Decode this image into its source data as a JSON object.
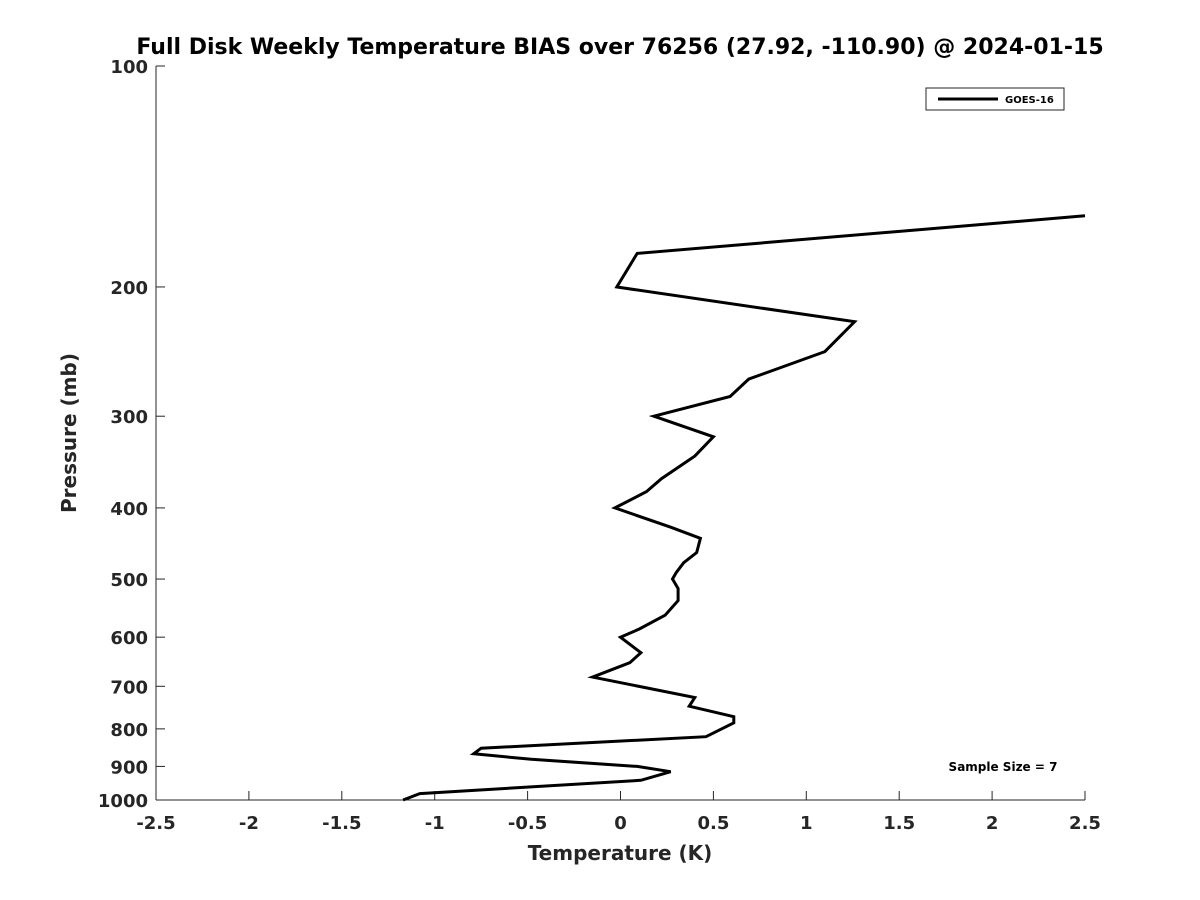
{
  "chart_data": {
    "type": "line",
    "title": "Full Disk Weekly Temperature BIAS over 76256 (27.92, -110.90) @ 2024-01-15",
    "xlabel": "Temperature (K)",
    "ylabel": "Pressure (mb)",
    "xlim": [
      -2.5,
      2.5
    ],
    "ylim": [
      1000,
      100
    ],
    "y_scale": "log",
    "x_ticks": [
      -2.5,
      -2,
      -1.5,
      -1,
      -0.5,
      0,
      0.5,
      1,
      1.5,
      2,
      2.5
    ],
    "x_tick_labels": [
      "-2.5",
      "-2",
      "-1.5",
      "-1",
      "-0.5",
      "0",
      "0.5",
      "1",
      "1.5",
      "2",
      "2.5"
    ],
    "y_ticks": [
      100,
      200,
      300,
      400,
      500,
      600,
      700,
      800,
      900,
      1000
    ],
    "y_tick_labels": [
      "100",
      "200",
      "300",
      "400",
      "500",
      "600",
      "700",
      "800",
      "900",
      "1000"
    ],
    "grid": false,
    "legend": {
      "placement": "top-right",
      "entries": [
        "GOES-16"
      ]
    },
    "annotation": "Sample Size = 7",
    "line_color": "#000000",
    "series": [
      {
        "name": "GOES-16",
        "points": [
          {
            "t": 2.5,
            "p": 160
          },
          {
            "t": 0.09,
            "p": 180
          },
          {
            "t": -0.02,
            "p": 200
          },
          {
            "t": 1.26,
            "p": 223
          },
          {
            "t": 1.1,
            "p": 245
          },
          {
            "t": 0.69,
            "p": 267
          },
          {
            "t": 0.59,
            "p": 282
          },
          {
            "t": 0.18,
            "p": 300
          },
          {
            "t": 0.5,
            "p": 320
          },
          {
            "t": 0.4,
            "p": 340
          },
          {
            "t": 0.22,
            "p": 365
          },
          {
            "t": 0.14,
            "p": 380
          },
          {
            "t": -0.03,
            "p": 400
          },
          {
            "t": 0.27,
            "p": 425
          },
          {
            "t": 0.43,
            "p": 440
          },
          {
            "t": 0.41,
            "p": 460
          },
          {
            "t": 0.34,
            "p": 475
          },
          {
            "t": 0.3,
            "p": 490
          },
          {
            "t": 0.28,
            "p": 500
          },
          {
            "t": 0.31,
            "p": 515
          },
          {
            "t": 0.31,
            "p": 535
          },
          {
            "t": 0.24,
            "p": 560
          },
          {
            "t": 0.1,
            "p": 585
          },
          {
            "t": 0.0,
            "p": 600
          },
          {
            "t": 0.11,
            "p": 630
          },
          {
            "t": 0.05,
            "p": 650
          },
          {
            "t": -0.15,
            "p": 680
          },
          {
            "t": 0.4,
            "p": 725
          },
          {
            "t": 0.37,
            "p": 745
          },
          {
            "t": 0.61,
            "p": 770
          },
          {
            "t": 0.61,
            "p": 785
          },
          {
            "t": 0.46,
            "p": 820
          },
          {
            "t": -0.75,
            "p": 850
          },
          {
            "t": -0.79,
            "p": 865
          },
          {
            "t": -0.48,
            "p": 880
          },
          {
            "t": 0.09,
            "p": 900
          },
          {
            "t": 0.27,
            "p": 915
          },
          {
            "t": 0.11,
            "p": 940
          },
          {
            "t": -1.08,
            "p": 980
          },
          {
            "t": -1.17,
            "p": 1000
          }
        ]
      }
    ]
  }
}
